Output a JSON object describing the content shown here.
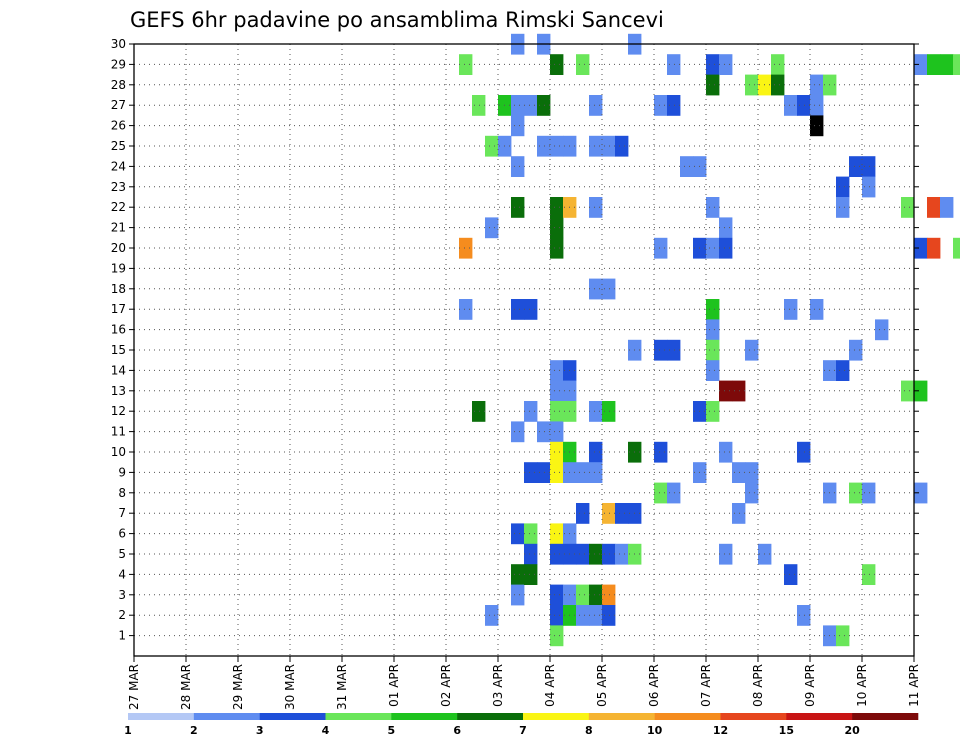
{
  "chart_data": {
    "type": "heatmap",
    "title": "GEFS 6hr padavine po ansamblima Rimski Sancevi",
    "xlabel": "",
    "ylabel": "",
    "x_ticks": [
      "27 MAR",
      "28 MAR",
      "29 MAR",
      "30 MAR",
      "31 MAR",
      "01 APR",
      "02 APR",
      "03 APR",
      "04 APR",
      "05 APR",
      "06 APR",
      "07 APR",
      "08 APR",
      "09 APR",
      "10 APR",
      "11 APR"
    ],
    "y_ticks": [
      1,
      2,
      3,
      4,
      5,
      6,
      7,
      8,
      9,
      10,
      11,
      12,
      13,
      14,
      15,
      16,
      17,
      18,
      19,
      20,
      21,
      22,
      23,
      24,
      25,
      26,
      27,
      28,
      29,
      30
    ],
    "time_step_hours": 6,
    "y_range": [
      0,
      30
    ],
    "grid": true,
    "colorbar": {
      "levels": [
        1,
        2,
        3,
        4,
        5,
        6,
        7,
        8,
        10,
        12,
        15,
        20
      ],
      "colors": [
        "#b4c8f5",
        "#5f8cf0",
        "#1e4fd9",
        "#6ae65a",
        "#1ec31e",
        "#0a6e0a",
        "#faf514",
        "#f5b432",
        "#f58c1e",
        "#e6461e",
        "#c81414",
        "#7d0a0a"
      ]
    },
    "cells": [
      [
        6.25,
        29,
        3
      ],
      [
        6.25,
        20,
        8
      ],
      [
        6.25,
        17,
        1
      ],
      [
        6.5,
        12,
        5
      ],
      [
        6.5,
        27,
        3
      ],
      [
        6.75,
        25,
        3
      ],
      [
        6.75,
        2,
        1
      ],
      [
        6.75,
        21,
        1
      ],
      [
        7,
        27,
        4
      ],
      [
        7,
        25,
        1
      ],
      [
        7.25,
        30,
        1
      ],
      [
        7.25,
        27,
        1
      ],
      [
        7.25,
        26,
        1
      ],
      [
        7.25,
        24,
        1
      ],
      [
        7.25,
        22,
        5
      ],
      [
        7.25,
        17,
        2
      ],
      [
        7.25,
        11,
        1
      ],
      [
        7.25,
        6,
        2
      ],
      [
        7.25,
        4,
        5
      ],
      [
        7.25,
        3,
        1
      ],
      [
        7.5,
        27,
        1
      ],
      [
        7.5,
        17,
        2
      ],
      [
        7.5,
        12,
        1
      ],
      [
        7.5,
        9,
        2
      ],
      [
        7.5,
        6,
        3
      ],
      [
        7.5,
        5,
        2
      ],
      [
        7.5,
        4,
        5
      ],
      [
        7.75,
        30,
        1
      ],
      [
        7.75,
        27,
        5
      ],
      [
        7.75,
        25,
        1
      ],
      [
        7.75,
        11,
        1
      ],
      [
        7.75,
        9,
        2
      ],
      [
        8,
        29,
        5
      ],
      [
        8,
        25,
        1
      ],
      [
        8,
        22,
        5
      ],
      [
        8,
        21,
        5
      ],
      [
        8,
        20,
        5
      ],
      [
        8,
        14,
        1
      ],
      [
        8,
        13,
        1
      ],
      [
        8,
        12,
        3
      ],
      [
        8,
        11,
        1
      ],
      [
        8,
        10,
        6
      ],
      [
        8,
        9,
        6
      ],
      [
        8,
        6,
        6
      ],
      [
        8,
        5,
        2
      ],
      [
        8,
        3,
        2
      ],
      [
        8,
        2,
        2
      ],
      [
        8,
        1,
        3
      ],
      [
        8.25,
        25,
        1
      ],
      [
        8.25,
        22,
        7
      ],
      [
        8.25,
        14,
        2
      ],
      [
        8.25,
        13,
        1
      ],
      [
        8.25,
        12,
        3
      ],
      [
        8.25,
        10,
        4
      ],
      [
        8.25,
        9,
        1
      ],
      [
        8.25,
        6,
        1
      ],
      [
        8.25,
        5,
        2
      ],
      [
        8.25,
        3,
        1
      ],
      [
        8.25,
        2,
        4
      ],
      [
        8.5,
        29,
        3
      ],
      [
        8.5,
        9,
        1
      ],
      [
        8.5,
        7,
        2
      ],
      [
        8.5,
        5,
        2
      ],
      [
        8.5,
        3,
        3
      ],
      [
        8.5,
        2,
        1
      ],
      [
        8.75,
        27,
        1
      ],
      [
        8.75,
        25,
        1
      ],
      [
        8.75,
        22,
        1
      ],
      [
        8.75,
        18,
        1
      ],
      [
        8.75,
        12,
        1
      ],
      [
        8.75,
        10,
        2
      ],
      [
        8.75,
        9,
        1
      ],
      [
        8.75,
        5,
        5
      ],
      [
        8.75,
        3,
        5
      ],
      [
        8.75,
        2,
        1
      ],
      [
        9,
        25,
        1
      ],
      [
        9,
        18,
        1
      ],
      [
        9,
        12,
        4
      ],
      [
        9,
        7,
        7
      ],
      [
        9,
        5,
        2
      ],
      [
        9,
        3,
        8
      ],
      [
        9,
        2,
        2
      ],
      [
        9.25,
        25,
        2
      ],
      [
        9.25,
        7,
        2
      ],
      [
        9.25,
        5,
        1
      ],
      [
        9.5,
        30,
        1
      ],
      [
        9.5,
        15,
        1
      ],
      [
        9.5,
        10,
        5
      ],
      [
        9.5,
        7,
        2
      ],
      [
        9.5,
        5,
        3
      ],
      [
        10,
        27,
        1
      ],
      [
        10,
        20,
        1
      ],
      [
        10,
        15,
        2
      ],
      [
        10,
        10,
        2
      ],
      [
        10,
        8,
        3
      ],
      [
        10.25,
        29,
        1
      ],
      [
        10.25,
        27,
        2
      ],
      [
        10.25,
        15,
        2
      ],
      [
        10.25,
        8,
        1
      ],
      [
        10.5,
        24,
        1
      ],
      [
        10.75,
        24,
        1
      ],
      [
        10.75,
        20,
        2
      ],
      [
        10.75,
        12,
        2
      ],
      [
        10.75,
        9,
        1
      ],
      [
        11,
        29,
        2
      ],
      [
        11,
        28,
        5
      ],
      [
        11,
        22,
        1
      ],
      [
        11,
        20,
        1
      ],
      [
        11,
        17,
        4
      ],
      [
        11,
        16,
        1
      ],
      [
        11,
        12,
        3
      ],
      [
        11,
        15,
        3
      ],
      [
        11,
        14,
        1
      ],
      [
        11.25,
        29,
        1
      ],
      [
        11.25,
        21,
        1
      ],
      [
        11.25,
        20,
        2
      ],
      [
        11.25,
        13,
        11
      ],
      [
        11.25,
        10,
        1
      ],
      [
        11.25,
        5,
        1
      ],
      [
        11.5,
        13,
        11
      ],
      [
        11.5,
        9,
        1
      ],
      [
        11.5,
        7,
        1
      ],
      [
        11.75,
        28,
        3
      ],
      [
        11.75,
        15,
        1
      ],
      [
        11.75,
        9,
        1
      ],
      [
        11.75,
        8,
        1
      ],
      [
        12,
        28,
        6
      ],
      [
        12,
        5,
        1
      ],
      [
        12.25,
        29,
        3
      ],
      [
        12.25,
        28,
        5
      ],
      [
        12.5,
        27,
        1
      ],
      [
        12.5,
        17,
        1
      ],
      [
        12.5,
        4,
        2
      ],
      [
        12.75,
        27,
        2
      ],
      [
        12.75,
        10,
        2
      ],
      [
        12.75,
        2,
        1
      ],
      [
        13,
        28,
        1
      ],
      [
        13,
        27,
        1
      ],
      [
        13,
        26,
        12
      ],
      [
        13,
        17,
        1
      ],
      [
        13.25,
        28,
        3
      ],
      [
        13.25,
        14,
        1
      ],
      [
        13.25,
        8,
        1
      ],
      [
        13.25,
        1,
        1
      ],
      [
        13.5,
        23,
        2
      ],
      [
        13.5,
        22,
        1
      ],
      [
        13.5,
        14,
        2
      ],
      [
        13.5,
        1,
        3
      ],
      [
        13.75,
        24,
        2
      ],
      [
        13.75,
        15,
        1
      ],
      [
        13.75,
        8,
        3
      ],
      [
        14,
        24,
        2
      ],
      [
        14,
        23,
        1
      ],
      [
        14,
        8,
        1
      ],
      [
        14,
        4,
        3
      ],
      [
        14.25,
        16,
        1
      ],
      [
        14.75,
        22,
        3
      ],
      [
        14.75,
        13,
        3
      ],
      [
        15,
        29,
        1
      ],
      [
        15,
        20,
        2
      ],
      [
        15,
        13,
        4
      ],
      [
        15,
        8,
        1
      ],
      [
        15.25,
        29,
        4
      ],
      [
        15.25,
        22,
        9
      ],
      [
        15.25,
        20,
        9
      ],
      [
        15.5,
        29,
        4
      ],
      [
        15.5,
        22,
        1
      ],
      [
        15.75,
        29,
        3
      ],
      [
        15.75,
        20,
        3
      ]
    ]
  }
}
